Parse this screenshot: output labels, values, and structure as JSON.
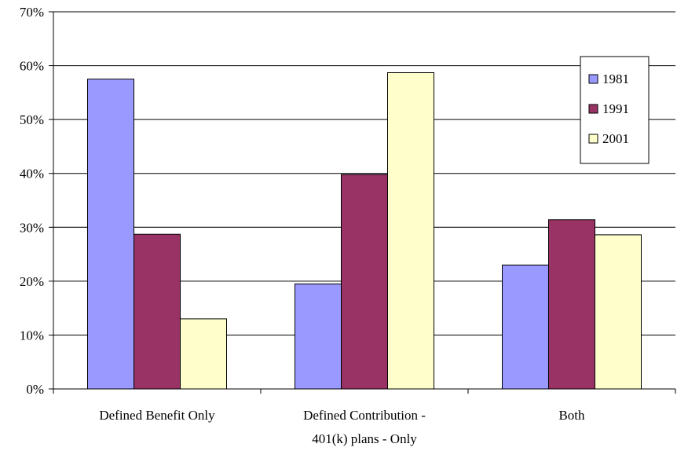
{
  "chart_data": {
    "type": "bar",
    "categories": [
      [
        "Defined Benefit Only"
      ],
      [
        "Defined Contribution -",
        "401(k) plans - Only"
      ],
      [
        "Both"
      ]
    ],
    "series": [
      {
        "name": "1981",
        "values": [
          57.5,
          19.5,
          23.0
        ],
        "color": "#9999ff"
      },
      {
        "name": "1991",
        "values": [
          28.7,
          39.8,
          31.4
        ],
        "color": "#993366"
      },
      {
        "name": "2001",
        "values": [
          13.0,
          58.7,
          28.6
        ],
        "color": "#ffffcc"
      }
    ],
    "y_ticks": [
      "0%",
      "10%",
      "20%",
      "30%",
      "40%",
      "50%",
      "60%",
      "70%"
    ],
    "ylim": [
      0,
      70
    ],
    "grid": true,
    "legend": "top-right",
    "title": "",
    "xlabel": "",
    "ylabel": ""
  }
}
